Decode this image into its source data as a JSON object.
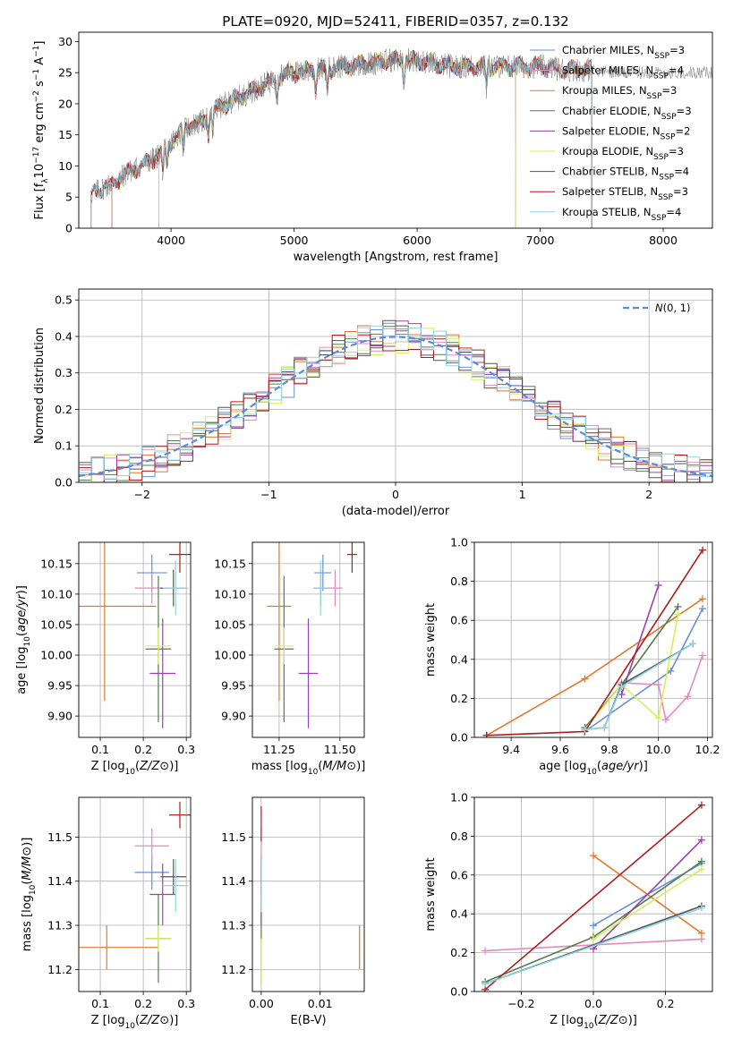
{
  "figure_title": "PLATE=0920, MJD=52411, FIBERID=0357, z=0.132",
  "colors": {
    "Chabrier MILES": "#6a8ed6",
    "Salpeter MILES": "#e38ac0",
    "Kroupa MILES": "#e0782b",
    "Chabrier ELODIE": "#4f7f4f",
    "Salpeter ELODIE": "#9a3fb3",
    "Kroupa ELODIE": "#d7ef5a",
    "Chabrier STELIB": "#555555",
    "Salpeter STELIB": "#b01c1c",
    "Kroupa STELIB": "#8fd3e6"
  },
  "chart_data": [
    {
      "id": "spectrum",
      "type": "line",
      "xlabel": "wavelength [Angstrom, rest frame]",
      "ylabel": "Flux [f_λ10^-17 erg cm^-2 s^-1 A^-1]",
      "xlim": [
        3250,
        8400
      ],
      "ylim": [
        0,
        31.5
      ],
      "xticks": [
        4000,
        5000,
        6000,
        7000,
        8000
      ],
      "yticks": [
        0,
        5,
        10,
        15,
        20,
        25,
        30
      ],
      "legend_position": "top-right",
      "legend": [
        {
          "name": "Chabrier MILES",
          "nssp": "3"
        },
        {
          "name": "Salpeter MILES",
          "nssp": "4"
        },
        {
          "name": "Kroupa MILES",
          "nssp": "3"
        },
        {
          "name": "Chabrier ELODIE",
          "nssp": "3"
        },
        {
          "name": "Salpeter ELODIE",
          "nssp": "2"
        },
        {
          "name": "Kroupa ELODIE",
          "nssp": "3"
        },
        {
          "name": "Chabrier STELIB",
          "nssp": "4"
        },
        {
          "name": "Salpeter STELIB",
          "nssp": "3"
        },
        {
          "name": "Kroupa STELIB",
          "nssp": "4"
        }
      ],
      "continuum": [
        [
          3350,
          5.5
        ],
        [
          3450,
          6.5
        ],
        [
          3550,
          7.5
        ],
        [
          3650,
          9
        ],
        [
          3750,
          10
        ],
        [
          3850,
          11
        ],
        [
          3950,
          12.5
        ],
        [
          4050,
          15
        ],
        [
          4150,
          16.5
        ],
        [
          4250,
          17
        ],
        [
          4350,
          19
        ],
        [
          4450,
          20
        ],
        [
          4550,
          21
        ],
        [
          4650,
          22
        ],
        [
          4750,
          23
        ],
        [
          4850,
          24
        ],
        [
          4950,
          25
        ],
        [
          5050,
          25
        ],
        [
          5150,
          25.5
        ],
        [
          5250,
          25.5
        ],
        [
          5350,
          26
        ],
        [
          5450,
          26
        ],
        [
          5550,
          26.5
        ],
        [
          5650,
          26.5
        ],
        [
          5750,
          27
        ],
        [
          5850,
          27
        ],
        [
          5950,
          27
        ],
        [
          6100,
          26.5
        ],
        [
          6300,
          26
        ],
        [
          6500,
          26
        ],
        [
          6600,
          26
        ],
        [
          6800,
          26
        ],
        [
          7000,
          26
        ],
        [
          7200,
          25.5
        ],
        [
          7400,
          25.5
        ],
        [
          7600,
          25
        ],
        [
          7800,
          25
        ],
        [
          8000,
          25
        ],
        [
          8200,
          25
        ],
        [
          8400,
          25
        ]
      ],
      "model_ranges": [
        {
          "name": "Chabrier MILES",
          "start": 3520,
          "end": 7420
        },
        {
          "name": "Salpeter MILES",
          "start": 3520,
          "end": 7420
        },
        {
          "name": "Kroupa MILES",
          "start": 3520,
          "end": 7420
        },
        {
          "name": "Chabrier ELODIE",
          "start": 3900,
          "end": 6800
        },
        {
          "name": "Salpeter ELODIE",
          "start": 3900,
          "end": 6800
        },
        {
          "name": "Kroupa ELODIE",
          "start": 3900,
          "end": 6800
        },
        {
          "name": "Chabrier STELIB",
          "start": 3350,
          "end": 7420
        },
        {
          "name": "Salpeter STELIB",
          "start": 3350,
          "end": 7420
        },
        {
          "name": "Kroupa STELIB",
          "start": 3350,
          "end": 7420
        }
      ]
    },
    {
      "id": "residuals",
      "type": "area",
      "xlabel": "(data-model)/error",
      "ylabel": "Normed distribution",
      "xlim": [
        -2.5,
        2.5
      ],
      "ylim": [
        0,
        0.53
      ],
      "xticks": [
        -2,
        -1,
        0,
        1,
        2
      ],
      "yticks": [
        0.0,
        0.1,
        0.2,
        0.3,
        0.4,
        0.5
      ],
      "legend_position": "top-right",
      "reference_curve": "N(0,1)",
      "bin_width": 0.1
    },
    {
      "id": "age_vs_Z",
      "type": "scatter",
      "xlabel": "Z [log10(Z/Z⊙)]",
      "ylabel": "age [log10(age/yr)]",
      "xlim": [
        0.05,
        0.31
      ],
      "ylim": [
        9.865,
        10.185
      ],
      "xticks": [
        0.1,
        0.2,
        0.3
      ],
      "yticks": [
        9.9,
        9.95,
        10.0,
        10.05,
        10.1,
        10.15
      ],
      "points": [
        {
          "name": "Chabrier MILES",
          "x": 0.22,
          "y": 10.135,
          "xerr": 0.035,
          "yerr": 0.03
        },
        {
          "name": "Salpeter MILES",
          "x": 0.22,
          "y": 10.11,
          "xerr": 0.04,
          "yerr": 0.025
        },
        {
          "name": "Kroupa MILES",
          "x": 0.11,
          "y": 10.08,
          "xerr": 0.12,
          "yerr": 0.155
        },
        {
          "name": "Chabrier ELODIE",
          "x": 0.235,
          "y": 10.01,
          "xerr": 0.03,
          "yerr": 0.12
        },
        {
          "name": "Salpeter ELODIE",
          "x": 0.245,
          "y": 9.97,
          "xerr": 0.03,
          "yerr": 0.09
        },
        {
          "name": "Kroupa ELODIE",
          "x": 0.235,
          "y": 10.015,
          "xerr": 0.03,
          "yerr": 0.03
        },
        {
          "name": "Chabrier STELIB",
          "x": 0.27,
          "y": 10.11,
          "xerr": 0.03,
          "yerr": 0.03
        },
        {
          "name": "Salpeter STELIB",
          "x": 0.285,
          "y": 10.165,
          "xerr": 0.025,
          "yerr": 0.03
        },
        {
          "name": "Kroupa STELIB",
          "x": 0.275,
          "y": 10.11,
          "xerr": 0.03,
          "yerr": 0.045
        }
      ]
    },
    {
      "id": "age_vs_mass",
      "type": "scatter",
      "xlabel": "mass [log10(M/M⊙)]",
      "ylabel": "",
      "xlim": [
        11.14,
        11.6
      ],
      "ylim": [
        9.865,
        10.185
      ],
      "xticks": [
        11.25,
        11.5
      ],
      "yticks": [
        9.9,
        9.95,
        10.0,
        10.05,
        10.1,
        10.15
      ],
      "points": [
        {
          "name": "Chabrier MILES",
          "x": 11.43,
          "y": 10.135,
          "xerr": 0.035,
          "yerr": 0.03
        },
        {
          "name": "Salpeter MILES",
          "x": 11.48,
          "y": 10.11,
          "xerr": 0.03,
          "yerr": 0.03
        },
        {
          "name": "Kroupa MILES",
          "x": 11.25,
          "y": 10.08,
          "xerr": 0.05,
          "yerr": 0.155
        },
        {
          "name": "Chabrier ELODIE",
          "x": 11.27,
          "y": 10.01,
          "xerr": 0.04,
          "yerr": 0.12
        },
        {
          "name": "Salpeter ELODIE",
          "x": 11.37,
          "y": 9.97,
          "xerr": 0.04,
          "yerr": 0.09
        },
        {
          "name": "Kroupa ELODIE",
          "x": 11.27,
          "y": 10.015,
          "xerr": 0.04,
          "yerr": 0.03
        },
        {
          "name": "Chabrier STELIB",
          "x": 11.42,
          "y": 10.11,
          "xerr": 0.03,
          "yerr": 0.03
        },
        {
          "name": "Salpeter STELIB",
          "x": 11.55,
          "y": 10.165,
          "xerr": 0.02,
          "yerr": 0.03
        },
        {
          "name": "Kroupa STELIB",
          "x": 11.42,
          "y": 10.11,
          "xerr": 0.03,
          "yerr": 0.045
        }
      ]
    },
    {
      "id": "weight_vs_age",
      "type": "line",
      "xlabel": "age [log10(age/yr)]",
      "ylabel": "mass weight",
      "xlim": [
        9.25,
        10.22
      ],
      "ylim": [
        0.0,
        1.0
      ],
      "xticks": [
        9.4,
        9.6,
        9.8,
        10.0,
        10.2
      ],
      "yticks": [
        0.0,
        0.2,
        0.4,
        0.6,
        0.8,
        1.0
      ],
      "series": [
        {
          "name": "Chabrier MILES",
          "x": [
            9.7,
            10.05,
            10.18
          ],
          "y": [
            0.03,
            0.34,
            0.66
          ]
        },
        {
          "name": "Salpeter MILES",
          "x": [
            9.85,
            10.0,
            10.03,
            10.12,
            10.18
          ],
          "y": [
            0.28,
            0.27,
            0.09,
            0.21,
            0.42
          ]
        },
        {
          "name": "Kroupa MILES",
          "x": [
            9.3,
            9.7,
            10.18
          ],
          "y": [
            0.01,
            0.3,
            0.71
          ]
        },
        {
          "name": "Chabrier ELODIE",
          "x": [
            9.7,
            9.85,
            10.08
          ],
          "y": [
            0.05,
            0.27,
            0.67
          ]
        },
        {
          "name": "Salpeter ELODIE",
          "x": [
            9.85,
            10.0
          ],
          "y": [
            0.22,
            0.78
          ]
        },
        {
          "name": "Kroupa ELODIE",
          "x": [
            9.7,
            9.85,
            10.0,
            10.08
          ],
          "y": [
            0.04,
            0.27,
            0.1,
            0.63
          ]
        },
        {
          "name": "Chabrier STELIB",
          "x": [
            9.7,
            9.78,
            9.85,
            10.14
          ],
          "y": [
            0.04,
            0.05,
            0.27,
            0.48
          ]
        },
        {
          "name": "Salpeter STELIB",
          "x": [
            9.3,
            9.7,
            10.18
          ],
          "y": [
            0.01,
            0.03,
            0.96
          ]
        },
        {
          "name": "Kroupa STELIB",
          "x": [
            9.7,
            9.78,
            9.85,
            10.14
          ],
          "y": [
            0.04,
            0.05,
            0.26,
            0.48
          ]
        }
      ]
    },
    {
      "id": "mass_vs_Z",
      "type": "scatter",
      "xlabel": "Z [log10(Z/Z⊙)]",
      "ylabel": "mass [log10(M/M⊙)]",
      "xlim": [
        0.05,
        0.31
      ],
      "ylim": [
        11.15,
        11.59
      ],
      "xticks": [
        0.1,
        0.2,
        0.3
      ],
      "yticks": [
        11.2,
        11.3,
        11.4,
        11.5
      ],
      "points": [
        {
          "name": "Chabrier MILES",
          "x": 0.22,
          "y": 11.42,
          "xerr": 0.04,
          "yerr": 0.04
        },
        {
          "name": "Salpeter MILES",
          "x": 0.22,
          "y": 11.48,
          "xerr": 0.04,
          "yerr": 0.04
        },
        {
          "name": "Kroupa MILES",
          "x": 0.115,
          "y": 11.25,
          "xerr": 0.12,
          "yerr": 0.05
        },
        {
          "name": "Chabrier ELODIE",
          "x": 0.235,
          "y": 11.27,
          "xerr": 0.03,
          "yerr": 0.1
        },
        {
          "name": "Salpeter ELODIE",
          "x": 0.245,
          "y": 11.37,
          "xerr": 0.03,
          "yerr": 0.07
        },
        {
          "name": "Kroupa ELODIE",
          "x": 0.235,
          "y": 11.27,
          "xerr": 0.03,
          "yerr": 0.03
        },
        {
          "name": "Chabrier STELIB",
          "x": 0.27,
          "y": 11.41,
          "xerr": 0.03,
          "yerr": 0.04
        },
        {
          "name": "Salpeter STELIB",
          "x": 0.285,
          "y": 11.55,
          "xerr": 0.025,
          "yerr": 0.03
        },
        {
          "name": "Kroupa STELIB",
          "x": 0.275,
          "y": 11.39,
          "xerr": 0.03,
          "yerr": 0.06
        }
      ]
    },
    {
      "id": "mass_vs_EBV",
      "type": "scatter",
      "xlabel": "E(B-V)",
      "ylabel": "",
      "xlim": [
        -0.0015,
        0.0175
      ],
      "ylim": [
        11.15,
        11.59
      ],
      "xticks": [
        0.0,
        0.01
      ],
      "yticks": [
        11.2,
        11.3,
        11.4,
        11.5
      ],
      "points": [
        {
          "name": "Chabrier MILES",
          "x": 0.0,
          "y": 11.42,
          "xerr": 0.0,
          "yerr": 0.04
        },
        {
          "name": "Salpeter MILES",
          "x": 0.0,
          "y": 11.48,
          "xerr": 0.0,
          "yerr": 0.04
        },
        {
          "name": "Kroupa MILES",
          "x": 0.0167,
          "y": 11.25,
          "xerr": 0.0,
          "yerr": 0.05
        },
        {
          "name": "Chabrier ELODIE",
          "x": 0.0,
          "y": 11.27,
          "xerr": 0.0,
          "yerr": 0.1
        },
        {
          "name": "Salpeter ELODIE",
          "x": 0.0,
          "y": 11.37,
          "xerr": 0.0,
          "yerr": 0.07
        },
        {
          "name": "Kroupa ELODIE",
          "x": 0.0,
          "y": 11.22,
          "xerr": 0.0,
          "yerr": 0.05
        },
        {
          "name": "Chabrier STELIB",
          "x": 0.0,
          "y": 11.41,
          "xerr": 0.0,
          "yerr": 0.04
        },
        {
          "name": "Salpeter STELIB",
          "x": 0.0,
          "y": 11.53,
          "xerr": 0.0,
          "yerr": 0.04
        },
        {
          "name": "Kroupa STELIB",
          "x": 0.0,
          "y": 11.39,
          "xerr": 0.0,
          "yerr": 0.06
        }
      ]
    },
    {
      "id": "weight_vs_Z",
      "type": "line",
      "xlabel": "Z [log10(Z/Z⊙)]",
      "ylabel": "mass weight",
      "xlim": [
        -0.33,
        0.33
      ],
      "ylim": [
        0.0,
        1.0
      ],
      "xticks": [
        -0.2,
        0.0,
        0.2
      ],
      "yticks": [
        0.0,
        0.2,
        0.4,
        0.6,
        0.8,
        1.0
      ],
      "series": [
        {
          "name": "Chabrier MILES",
          "x": [
            0.0,
            0.3
          ],
          "y": [
            0.34,
            0.66
          ]
        },
        {
          "name": "Salpeter MILES",
          "x": [
            -0.3,
            0.3
          ],
          "y": [
            0.21,
            0.27
          ]
        },
        {
          "name": "Kroupa MILES",
          "x": [
            0.0,
            0.3
          ],
          "y": [
            0.7,
            0.3
          ]
        },
        {
          "name": "Chabrier ELODIE",
          "x": [
            -0.3,
            0.0,
            0.3
          ],
          "y": [
            0.05,
            0.28,
            0.67
          ]
        },
        {
          "name": "Salpeter ELODIE",
          "x": [
            0.0,
            0.3
          ],
          "y": [
            0.22,
            0.78
          ]
        },
        {
          "name": "Kroupa ELODIE",
          "x": [
            0.0,
            0.3
          ],
          "y": [
            0.27,
            0.63
          ]
        },
        {
          "name": "Chabrier STELIB",
          "x": [
            -0.3,
            0.3
          ],
          "y": [
            0.04,
            0.44
          ]
        },
        {
          "name": "Salpeter STELIB",
          "x": [
            -0.3,
            0.3
          ],
          "y": [
            0.01,
            0.96
          ]
        },
        {
          "name": "Kroupa STELIB",
          "x": [
            -0.3,
            0.3
          ],
          "y": [
            0.04,
            0.43
          ]
        }
      ]
    }
  ]
}
